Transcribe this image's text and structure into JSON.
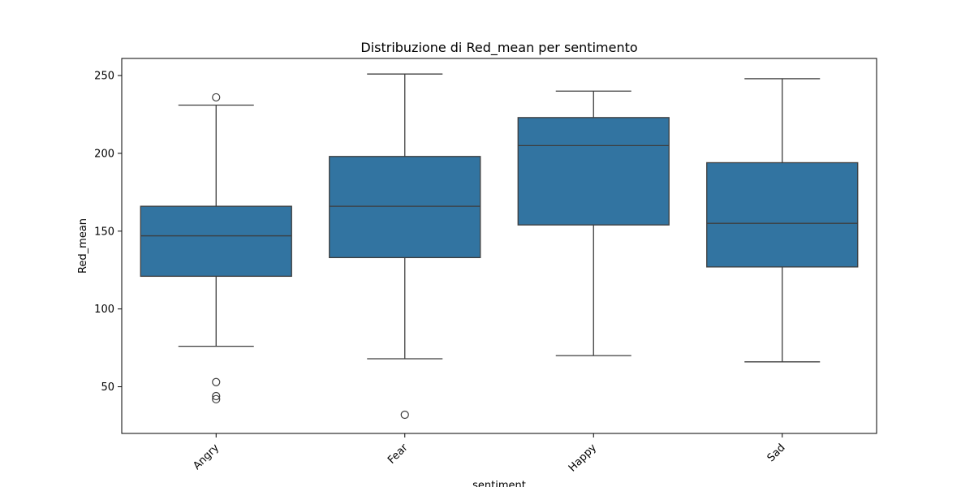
{
  "chart_data": {
    "type": "box",
    "title": "Distribuzione di Red_mean per sentimento",
    "xlabel": "sentiment",
    "ylabel": "Red_mean",
    "categories": [
      "Angry",
      "Fear",
      "Happy",
      "Sad"
    ],
    "ylim": [
      20,
      261
    ],
    "yticks": [
      50,
      100,
      150,
      200,
      250
    ],
    "grid": false,
    "box_color": "#3274a1",
    "edge_color": "#3d3d3d",
    "boxes": [
      {
        "category": "Angry",
        "whisker_low": 76,
        "q1": 121,
        "median": 147,
        "q3": 166,
        "whisker_high": 231,
        "outliers": [
          236,
          53,
          44,
          42
        ]
      },
      {
        "category": "Fear",
        "whisker_low": 68,
        "q1": 133,
        "median": 166,
        "q3": 198,
        "whisker_high": 251,
        "outliers": [
          32
        ]
      },
      {
        "category": "Happy",
        "whisker_low": 70,
        "q1": 154,
        "median": 205,
        "q3": 223,
        "whisker_high": 240,
        "outliers": []
      },
      {
        "category": "Sad",
        "whisker_low": 66,
        "q1": 127,
        "median": 155,
        "q3": 194,
        "whisker_high": 248,
        "outliers": []
      }
    ]
  }
}
